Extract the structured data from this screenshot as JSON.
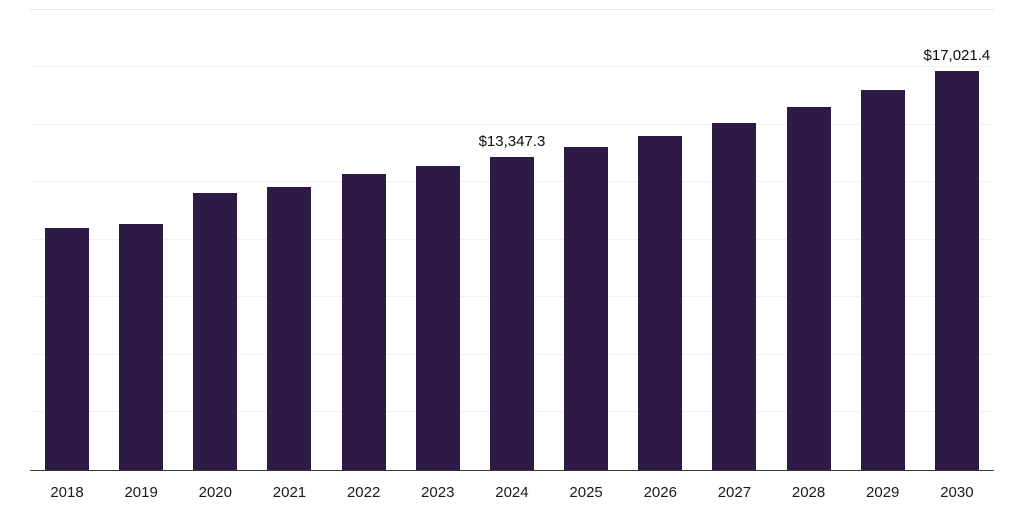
{
  "chart_data": {
    "type": "bar",
    "title": "",
    "xlabel": "",
    "ylabel": "",
    "categories": [
      "2018",
      "2019",
      "2020",
      "2021",
      "2022",
      "2023",
      "2024",
      "2025",
      "2026",
      "2027",
      "2028",
      "2029",
      "2030"
    ],
    "values": [
      10300,
      10500,
      11800,
      12050,
      12600,
      12950,
      13347.3,
      13750,
      14230,
      14780,
      15460,
      16190,
      17021.4
    ],
    "point_labels": [
      "",
      "",
      "",
      "",
      "",
      "",
      "$13,347.3",
      "",
      "",
      "",
      "",
      "",
      "$17,021.4"
    ],
    "ylim": [
      0,
      19600
    ],
    "grid": true,
    "gridline_count": 8,
    "legend": "none",
    "bar_color": "#2e1a47",
    "axis_line_color": "#3a3a3a",
    "gridline_color": "#f0f0f0"
  }
}
